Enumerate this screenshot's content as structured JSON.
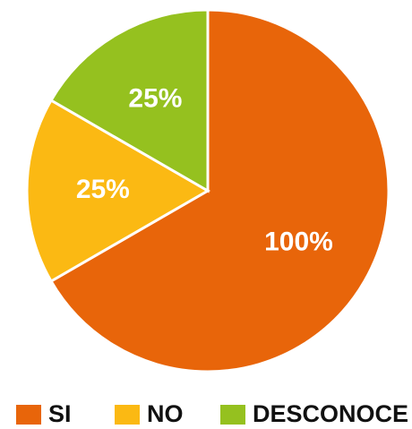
{
  "chart_data": {
    "type": "pie",
    "categories": [
      "SI",
      "NO",
      "DESCONOCE"
    ],
    "values": [
      100,
      25,
      25
    ],
    "value_labels": [
      "100%",
      "25%",
      "25%"
    ],
    "colors": [
      "#e8650a",
      "#fbb913",
      "#95c11f"
    ],
    "legend": "bottom"
  }
}
